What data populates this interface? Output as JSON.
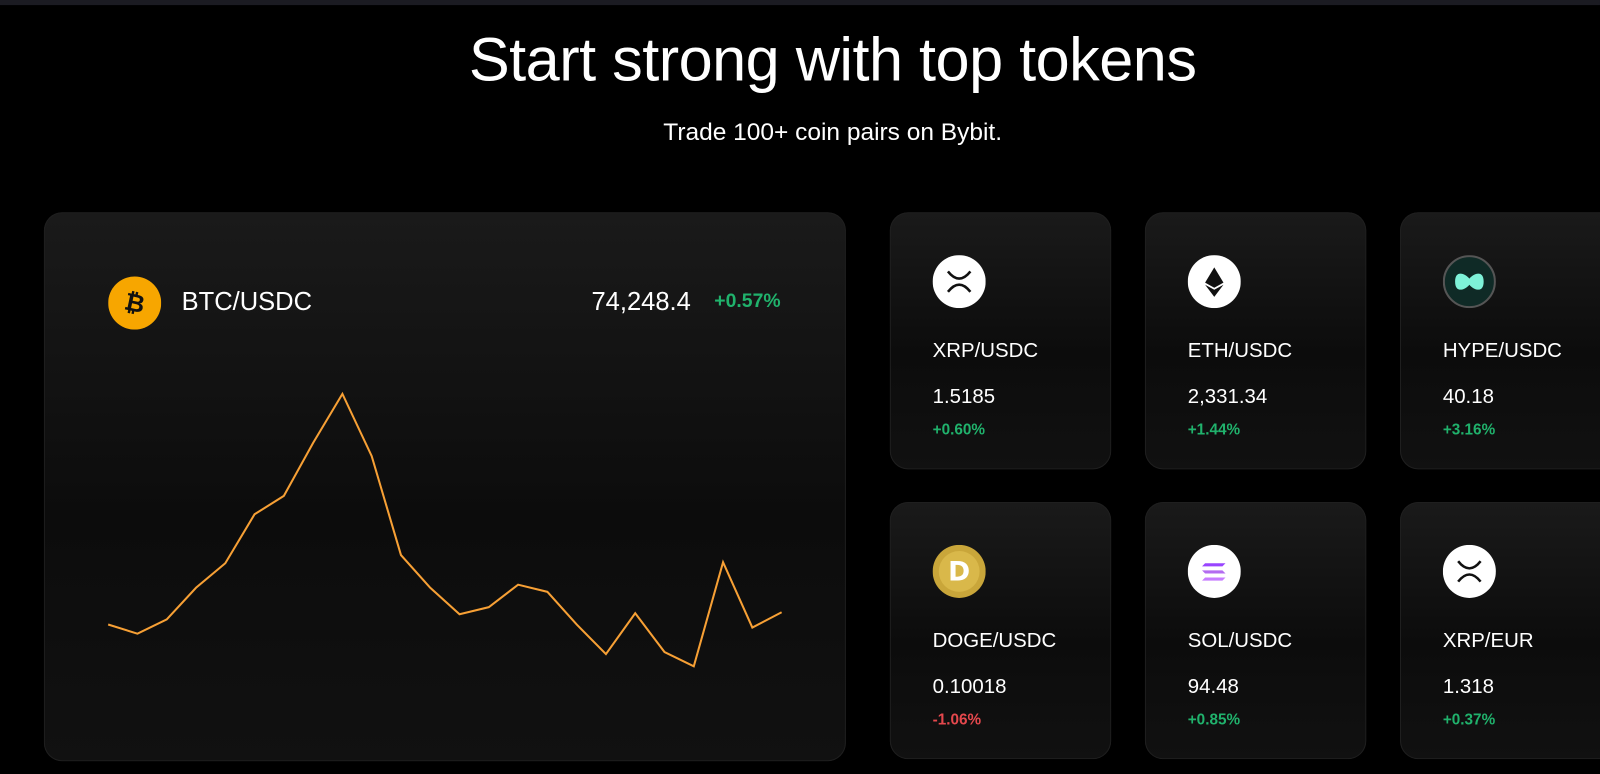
{
  "header": {
    "title": "Start strong with top tokens",
    "subtitle": "Trade 100+ coin pairs on Bybit."
  },
  "featured": {
    "pair": "BTC/USDC",
    "price": "74,248.4",
    "change": "+0.57%",
    "sparkline": [
      88,
      79,
      93,
      124,
      148,
      196,
      214,
      266,
      314,
      253,
      156,
      124,
      98,
      105,
      127,
      120,
      88,
      59,
      99,
      61,
      47,
      149,
      85,
      100
    ]
  },
  "tokens": [
    {
      "pair": "XRP/USDC",
      "price": "1.5185",
      "change": "+0.60%"
    },
    {
      "pair": "ETH/USDC",
      "price": "2,331.34",
      "change": "+1.44%"
    },
    {
      "pair": "HYPE/USDC",
      "price": "40.18",
      "change": "+3.16%"
    },
    {
      "pair": "DOGE/USDC",
      "price": "0.10018",
      "change": "-1.06%"
    },
    {
      "pair": "SOL/USDC",
      "price": "94.48",
      "change": "+0.85%"
    },
    {
      "pair": "XRP/EUR",
      "price": "1.318",
      "change": "+0.37%"
    }
  ]
}
